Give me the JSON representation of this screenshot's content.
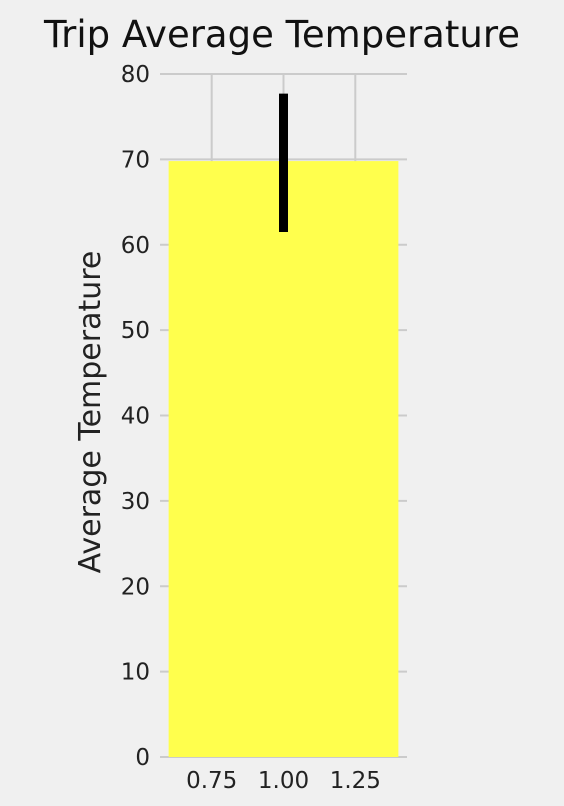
{
  "chart_data": {
    "type": "bar",
    "title": "Trip Average Temperature",
    "xlabel": "",
    "ylabel": "Average Temperature",
    "categories": [
      1.0
    ],
    "series": [
      {
        "values": [
          69.8
        ],
        "error_range": [
          61.5,
          77.7
        ]
      }
    ],
    "bar_width": 0.8,
    "xlim": [
      0.57,
      1.43
    ],
    "ylim": [
      0,
      80
    ],
    "xticks": [
      0.75,
      1.0,
      1.25
    ],
    "xtick_labels": [
      "0.75",
      "1.00",
      "1.25"
    ],
    "yticks": [
      0,
      10,
      20,
      30,
      40,
      50,
      60,
      70,
      80
    ],
    "ytick_labels": [
      "0",
      "10",
      "20",
      "30",
      "40",
      "50",
      "60",
      "70",
      "80"
    ],
    "grid": true,
    "legend": "none",
    "colors": {
      "bar": "#ffff4d",
      "error_bar": "#000000",
      "background": "#f0f0f0",
      "grid": "#cbcbcb"
    }
  }
}
